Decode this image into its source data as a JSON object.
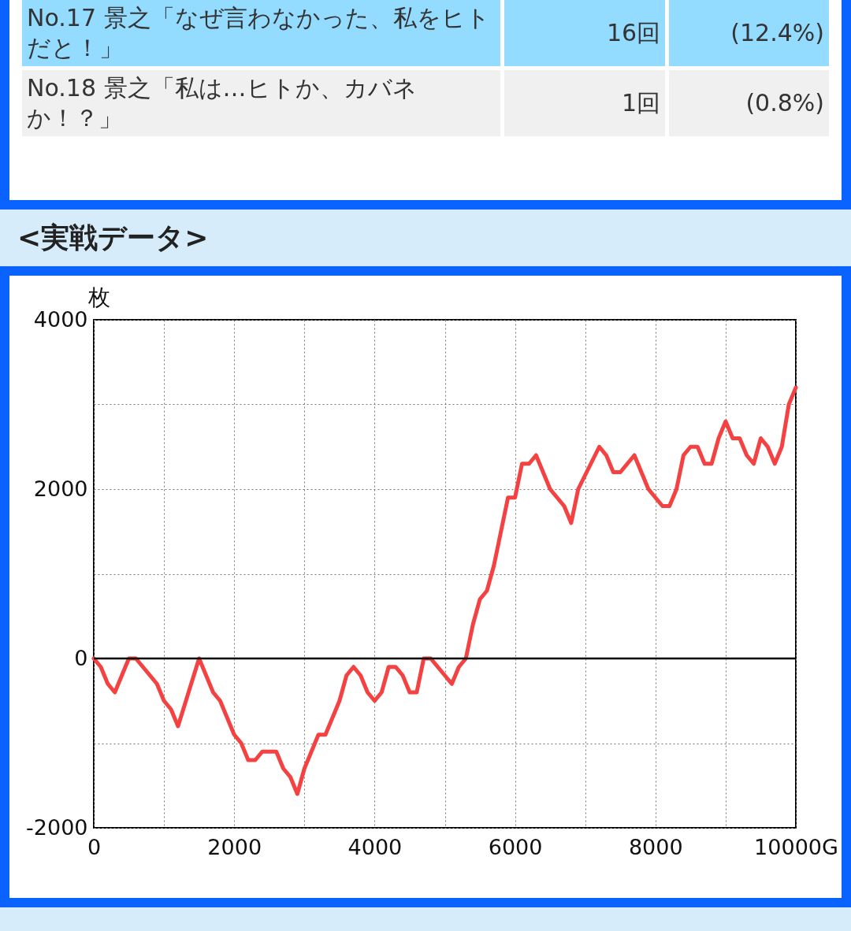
{
  "chart_data": [
    {
      "type": "other",
      "annotations": [
        "No.17 景之「なぜ言わなかった、私をヒトだと！」",
        "16回",
        "(12.4%)",
        "No.18 景之「私は…ヒトか、カバネか！？」",
        "1回",
        "(0.8%)"
      ]
    },
    {
      "type": "line",
      "title": "<実戦データ>",
      "ylabel": "枚",
      "x": [
        0,
        100,
        200,
        300,
        500,
        600,
        800,
        900,
        1000,
        1100,
        1200,
        1500,
        1700,
        1800,
        2000,
        2100,
        2200,
        2300,
        2400,
        2600,
        2700,
        2800,
        2900,
        3000,
        3200,
        3300,
        3500,
        3600,
        3700,
        3800,
        3900,
        4000,
        4100,
        4200,
        4300,
        4400,
        4500,
        4600,
        4700,
        4800,
        5100,
        5200,
        5300,
        5400,
        5500,
        5600,
        5700,
        5900,
        6000,
        6100,
        6200,
        6300,
        6500,
        6700,
        6800,
        6900,
        7200,
        7300,
        7400,
        7500,
        7700,
        7900,
        8000,
        8100,
        8200,
        8300,
        8400,
        8500,
        8600,
        8700,
        8800,
        8900,
        9000,
        9100,
        9200,
        9300,
        9400,
        9500,
        9600,
        9700,
        9800,
        9900,
        10000
      ],
      "series": [
        {
          "color": "#f44242",
          "values": [
            0,
            -100,
            -300,
            -400,
            0,
            0,
            -200,
            -300,
            -500,
            -600,
            -800,
            0,
            -400,
            -500,
            -900,
            -1000,
            -1200,
            -1200,
            -1100,
            -1100,
            -1300,
            -1400,
            -1600,
            -1300,
            -900,
            -900,
            -500,
            -200,
            -100,
            -200,
            -400,
            -500,
            -400,
            -100,
            -100,
            -200,
            -400,
            -400,
            0,
            0,
            -300,
            -100,
            0,
            400,
            700,
            800,
            1100,
            1900,
            1900,
            2300,
            2300,
            2400,
            2000,
            1800,
            1600,
            2000,
            2500,
            2400,
            2200,
            2200,
            2400,
            2000,
            1900,
            1800,
            1800,
            2000,
            2400,
            2500,
            2500,
            2300,
            2300,
            2600,
            2800,
            2600,
            2600,
            2400,
            2300,
            2600,
            2500,
            2300,
            2500,
            3000,
            3200
          ]
        }
      ],
      "xlim": [
        0,
        10000
      ],
      "xticks": [
        0,
        {
          "value": 1000,
          "label": null
        },
        2000,
        {
          "value": 3000,
          "label": null
        },
        4000,
        {
          "value": 5000,
          "label": null
        },
        6000,
        {
          "value": 7000,
          "label": null
        },
        8000,
        {
          "value": 9000,
          "label": null
        },
        {
          "value": 10000,
          "label": "10000G"
        }
      ],
      "ylim": [
        -2000,
        4000
      ],
      "yticks": [
        -2000,
        {
          "value": -1000,
          "label": null
        },
        0,
        {
          "value": 1000,
          "label": null
        },
        2000,
        {
          "value": 3000,
          "label": null
        },
        4000
      ],
      "grid": true,
      "line_style": "solid",
      "ref_lines": [
        {
          "axis": "y",
          "value": 0,
          "color": "#000000"
        }
      ]
    }
  ]
}
